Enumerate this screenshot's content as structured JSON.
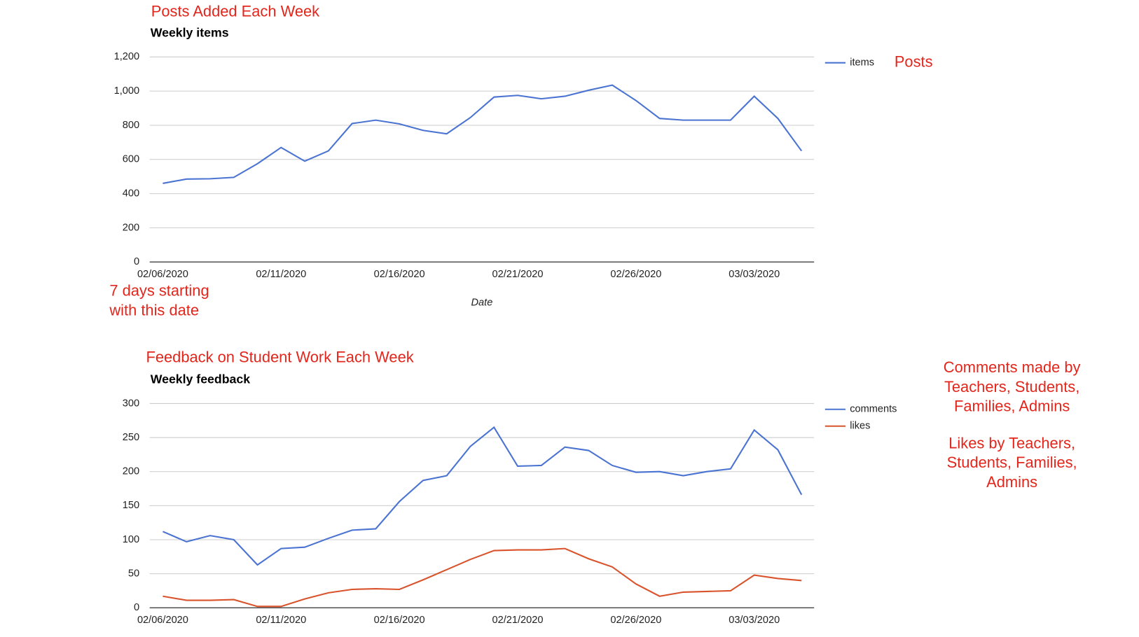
{
  "chart_data": [
    {
      "type": "line",
      "title": "Weekly items",
      "xlabel": "Date",
      "categories": [
        "02/06/2020",
        null,
        null,
        null,
        null,
        "02/11/2020",
        null,
        null,
        null,
        null,
        "02/16/2020",
        null,
        null,
        null,
        null,
        "02/21/2020",
        null,
        null,
        null,
        null,
        "02/26/2020",
        null,
        null,
        null,
        null,
        "03/03/2020",
        null,
        null
      ],
      "series": [
        {
          "name": "items",
          "color": "#4a73d2",
          "values": [
            460,
            485,
            487,
            495,
            575,
            670,
            590,
            650,
            810,
            830,
            808,
            770,
            750,
            845,
            965,
            975,
            955,
            970,
            1005,
            1035,
            945,
            840,
            830,
            830,
            830,
            970,
            840,
            650
          ]
        }
      ],
      "ylim": [
        0,
        1200
      ],
      "yticks": [
        0,
        200,
        400,
        600,
        800,
        {
          "value": 1000,
          "label": "1,000"
        },
        {
          "value": 1200,
          "label": "1,200"
        }
      ],
      "grid": true,
      "legend": "right"
    },
    {
      "type": "line",
      "title": "Weekly feedback",
      "categories": [
        "02/06/2020",
        null,
        null,
        null,
        null,
        "02/11/2020",
        null,
        null,
        null,
        null,
        "02/16/2020",
        null,
        null,
        null,
        null,
        "02/21/2020",
        null,
        null,
        null,
        null,
        "02/26/2020",
        null,
        null,
        null,
        null,
        "03/03/2020",
        null,
        null
      ],
      "series": [
        {
          "name": "comments",
          "color": "#4a73d2",
          "values": [
            112,
            97,
            106,
            100,
            63,
            87,
            89,
            102,
            114,
            116,
            156,
            187,
            194,
            237,
            265,
            208,
            209,
            236,
            231,
            209,
            199,
            200,
            194,
            200,
            204,
            261,
            232,
            166
          ]
        },
        {
          "name": "likes",
          "color": "#d9532c",
          "values": [
            17,
            11,
            11,
            12,
            2,
            2,
            13,
            22,
            27,
            28,
            27,
            41,
            56,
            71,
            84,
            85,
            85,
            87,
            72,
            60,
            35,
            17,
            23,
            24,
            25,
            48,
            43,
            40
          ]
        }
      ],
      "ylim": [
        0,
        300
      ],
      "yticks": [
        0,
        50,
        100,
        150,
        200,
        250,
        300
      ],
      "grid": true,
      "legend": "right"
    }
  ],
  "annotations": [
    {
      "lines": [
        "Posts Added Each Week"
      ]
    },
    {
      "lines": [
        "Posts"
      ]
    },
    {
      "lines": [
        "7 days starting",
        "with this date"
      ]
    },
    {
      "lines": [
        "Feedback on Student Work Each Week"
      ]
    },
    {
      "lines": [
        "Comments made by",
        "Teachers, Students,",
        "Families, Admins"
      ]
    },
    {
      "lines": [
        "Likes by Teachers,",
        "Students, Families,",
        "Admins"
      ]
    }
  ]
}
